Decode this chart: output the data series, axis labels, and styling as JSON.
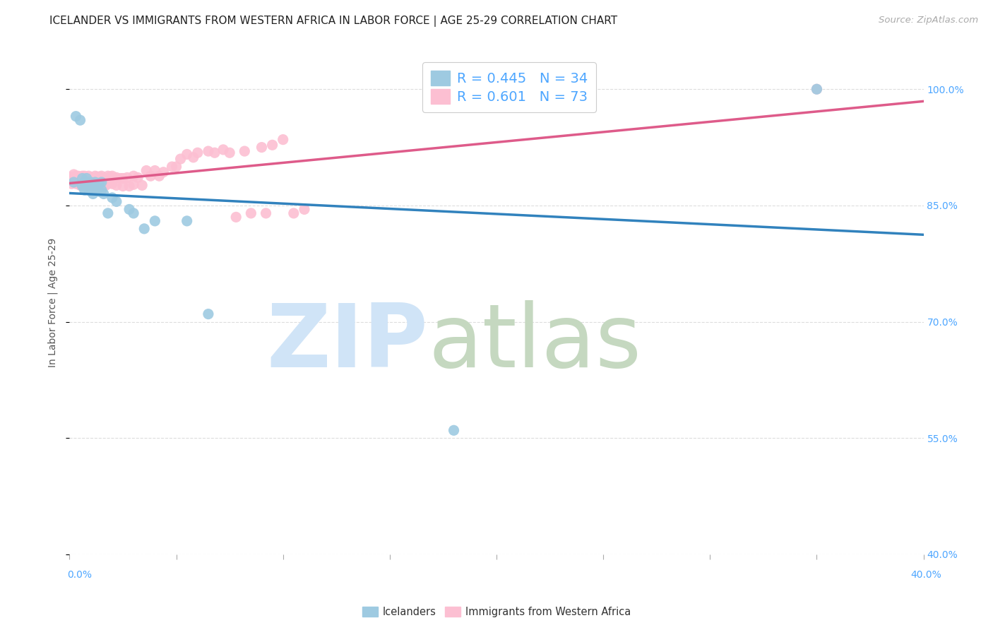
{
  "title": "ICELANDER VS IMMIGRANTS FROM WESTERN AFRICA IN LABOR FORCE | AGE 25-29 CORRELATION CHART",
  "source": "Source: ZipAtlas.com",
  "ylabel": "In Labor Force | Age 25-29",
  "xlim": [
    0.0,
    0.4
  ],
  "ylim": [
    0.4,
    1.05
  ],
  "x_ticks": [
    0.0,
    0.05,
    0.1,
    0.15,
    0.2,
    0.25,
    0.3,
    0.35,
    0.4
  ],
  "y_ticks": [
    0.4,
    0.55,
    0.7,
    0.85,
    1.0
  ],
  "y_tick_labels": [
    "40.0%",
    "55.0%",
    "70.0%",
    "85.0%",
    "100.0%"
  ],
  "blue_R": 0.445,
  "blue_N": 34,
  "pink_R": 0.601,
  "pink_N": 73,
  "blue_color": "#9ecae1",
  "pink_color": "#fcbfd2",
  "blue_line_color": "#3182bd",
  "pink_line_color": "#de5b8a",
  "tick_color": "#4da6ff",
  "watermark_zip_color": "#d0e4f7",
  "watermark_atlas_color": "#c5d8c0",
  "blue_points_x": [
    0.002,
    0.003,
    0.005,
    0.006,
    0.006,
    0.007,
    0.007,
    0.008,
    0.008,
    0.009,
    0.009,
    0.01,
    0.01,
    0.011,
    0.011,
    0.012,
    0.012,
    0.013,
    0.014,
    0.014,
    0.015,
    0.015,
    0.016,
    0.018,
    0.02,
    0.022,
    0.028,
    0.03,
    0.035,
    0.04,
    0.055,
    0.065,
    0.18,
    0.35
  ],
  "blue_points_y": [
    0.88,
    0.965,
    0.96,
    0.885,
    0.875,
    0.88,
    0.87,
    0.885,
    0.875,
    0.88,
    0.87,
    0.88,
    0.87,
    0.878,
    0.865,
    0.88,
    0.87,
    0.878,
    0.878,
    0.868,
    0.88,
    0.87,
    0.865,
    0.84,
    0.86,
    0.855,
    0.845,
    0.84,
    0.82,
    0.83,
    0.83,
    0.71,
    0.56,
    1.0
  ],
  "pink_points_x": [
    0.001,
    0.001,
    0.002,
    0.002,
    0.003,
    0.003,
    0.004,
    0.004,
    0.005,
    0.005,
    0.006,
    0.006,
    0.007,
    0.007,
    0.008,
    0.008,
    0.009,
    0.009,
    0.01,
    0.01,
    0.011,
    0.011,
    0.012,
    0.012,
    0.013,
    0.013,
    0.014,
    0.014,
    0.015,
    0.015,
    0.016,
    0.017,
    0.018,
    0.018,
    0.019,
    0.02,
    0.02,
    0.022,
    0.022,
    0.024,
    0.025,
    0.025,
    0.027,
    0.028,
    0.03,
    0.03,
    0.032,
    0.034,
    0.036,
    0.038,
    0.04,
    0.042,
    0.044,
    0.048,
    0.05,
    0.052,
    0.055,
    0.058,
    0.06,
    0.065,
    0.068,
    0.072,
    0.075,
    0.078,
    0.082,
    0.085,
    0.09,
    0.092,
    0.095,
    0.1,
    0.105,
    0.11,
    0.35
  ],
  "pink_points_y": [
    0.887,
    0.878,
    0.89,
    0.88,
    0.888,
    0.878,
    0.888,
    0.878,
    0.885,
    0.876,
    0.888,
    0.878,
    0.888,
    0.878,
    0.886,
    0.876,
    0.888,
    0.877,
    0.886,
    0.877,
    0.885,
    0.875,
    0.888,
    0.877,
    0.887,
    0.877,
    0.887,
    0.877,
    0.888,
    0.877,
    0.885,
    0.876,
    0.888,
    0.878,
    0.887,
    0.888,
    0.878,
    0.886,
    0.876,
    0.885,
    0.885,
    0.875,
    0.886,
    0.875,
    0.888,
    0.877,
    0.886,
    0.876,
    0.895,
    0.888,
    0.895,
    0.888,
    0.893,
    0.9,
    0.9,
    0.91,
    0.916,
    0.912,
    0.918,
    0.92,
    0.918,
    0.922,
    0.918,
    0.835,
    0.92,
    0.84,
    0.925,
    0.84,
    0.928,
    0.935,
    0.84,
    0.845,
    1.0
  ],
  "title_fontsize": 11,
  "axis_label_fontsize": 10,
  "tick_fontsize": 10,
  "legend_fontsize": 14,
  "source_fontsize": 9.5
}
